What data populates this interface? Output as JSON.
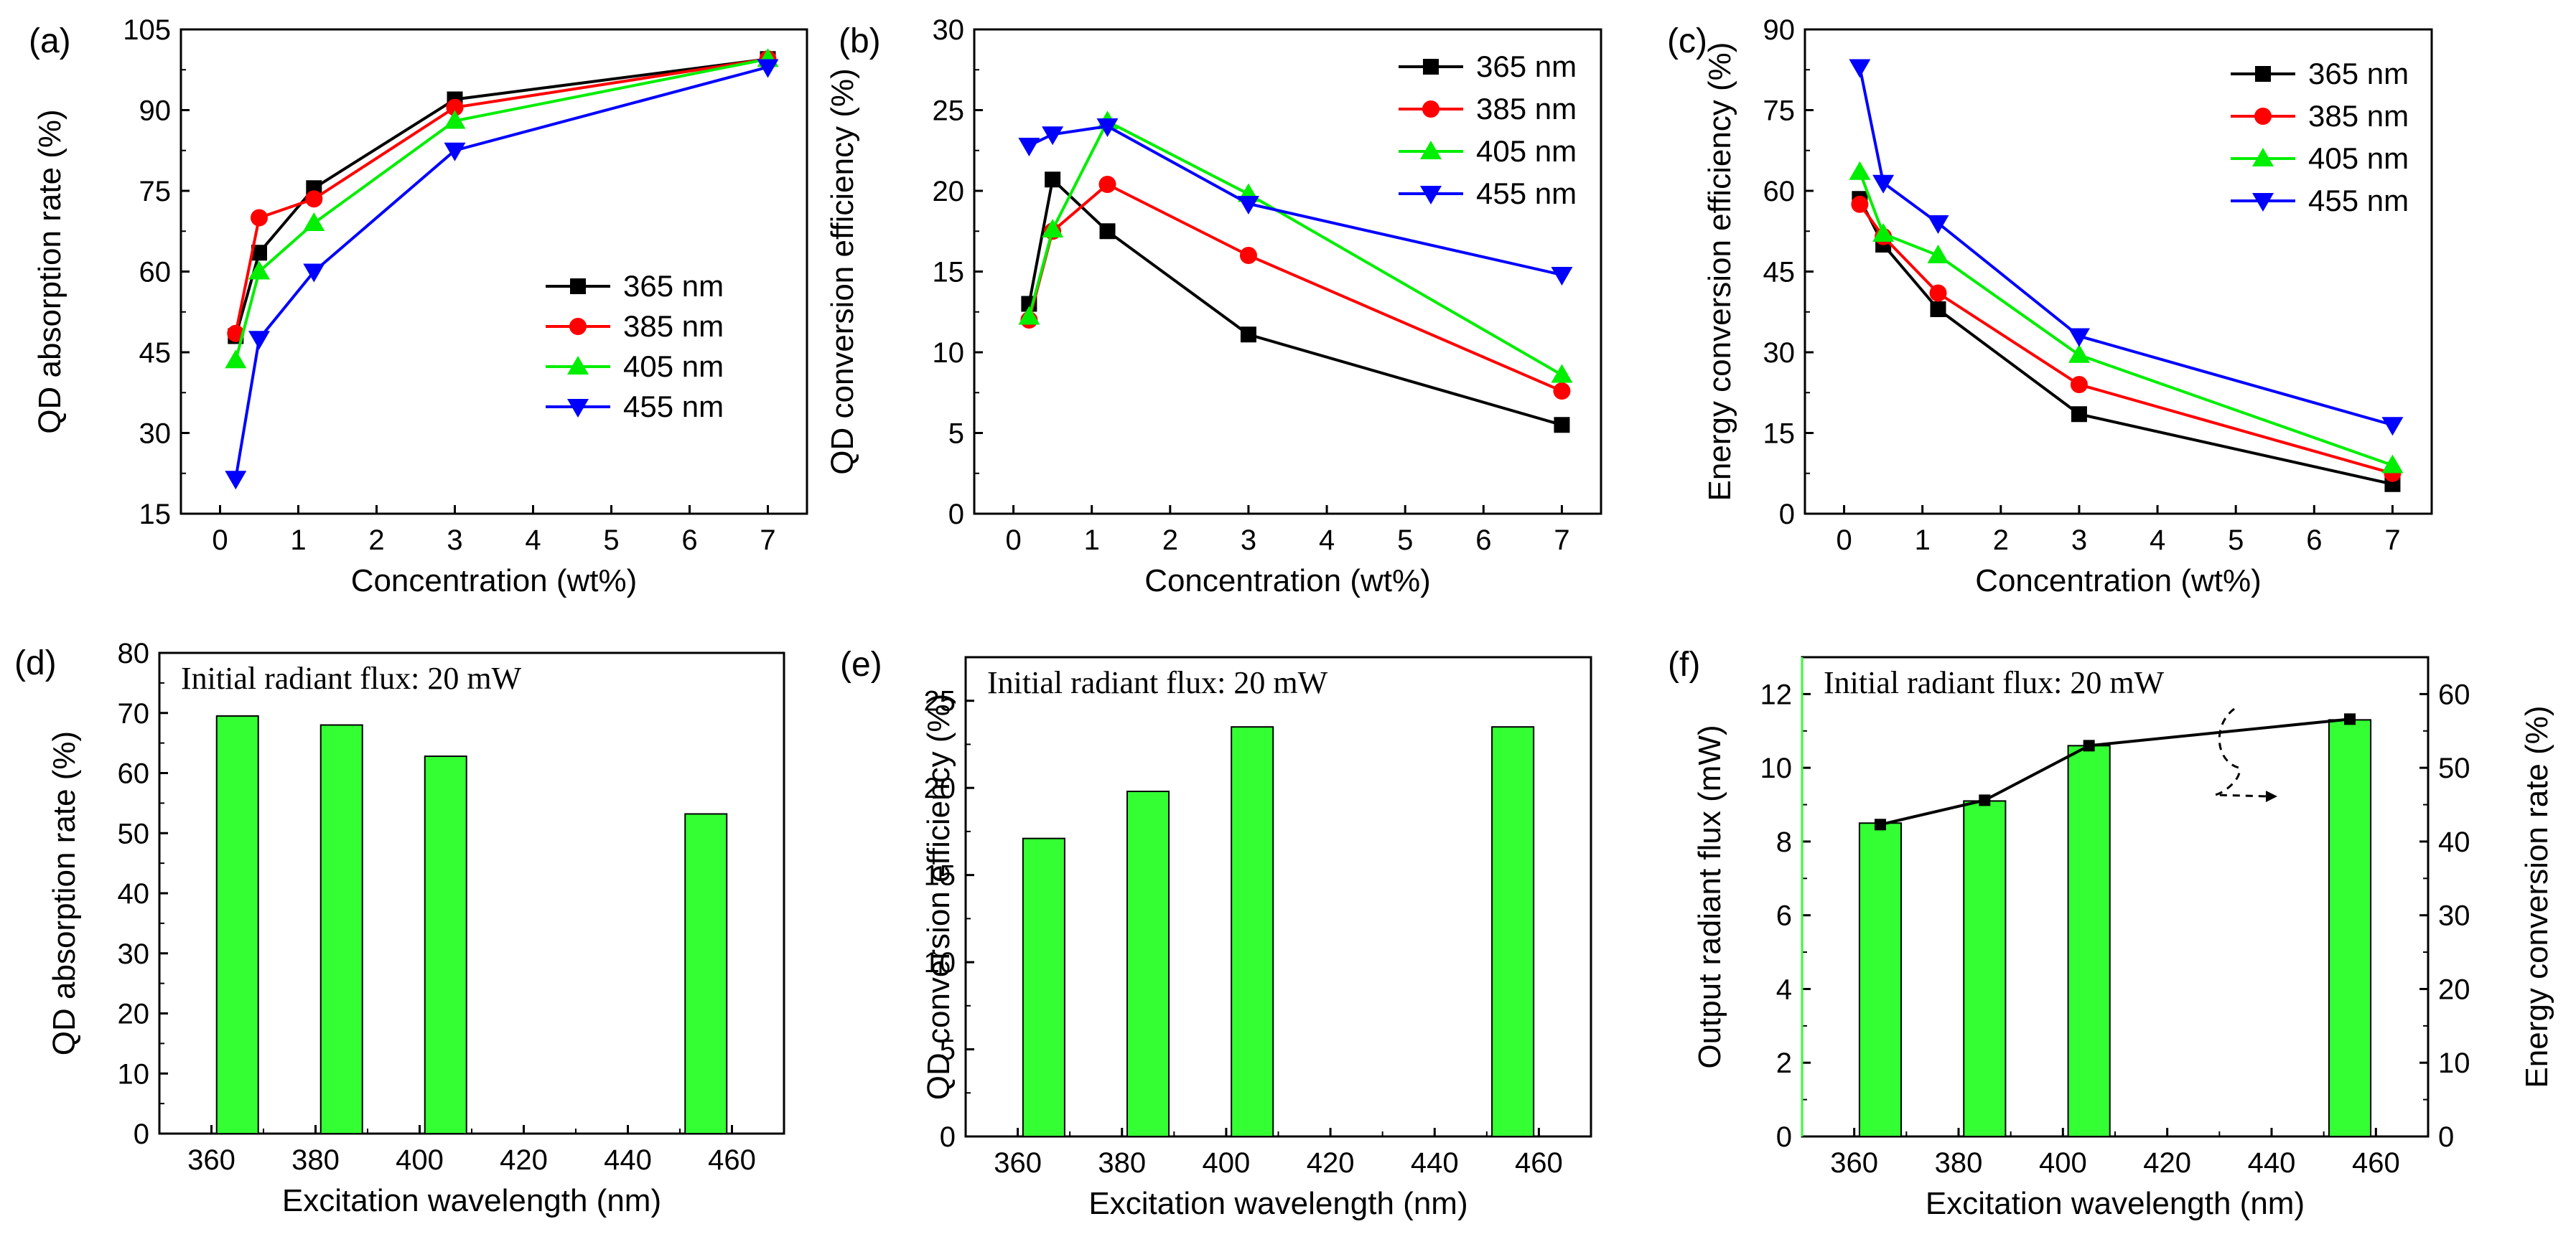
{
  "colors": {
    "s365": "#000000",
    "s385": "#ff0000",
    "s405": "#00ee00",
    "s455": "#0000ff",
    "bar": "#33ff33",
    "axis": "#000000"
  },
  "chart_data": [
    {
      "id": "a",
      "panel_label": "(a)",
      "type": "line",
      "xlabel": "Concentration (wt%)",
      "ylabel": "QD absorption rate (%)",
      "xlim": [
        -0.5,
        7.5
      ],
      "ylim": [
        15,
        105
      ],
      "xticks": [
        0,
        1,
        2,
        3,
        4,
        5,
        6,
        7
      ],
      "yticks": [
        15,
        30,
        45,
        60,
        75,
        90,
        105
      ],
      "legend": "bottom-right",
      "x": [
        0.2,
        0.5,
        1.2,
        3,
        7
      ],
      "series": [
        {
          "name": "365 nm",
          "marker": "square",
          "values": [
            48,
            63.5,
            75.5,
            92,
            99.5
          ]
        },
        {
          "name": "385 nm",
          "marker": "circle",
          "values": [
            48.5,
            70,
            73.5,
            90.5,
            99.5
          ]
        },
        {
          "name": "405 nm",
          "marker": "triangle-up",
          "values": [
            43.5,
            60,
            69,
            88,
            99.5
          ]
        },
        {
          "name": "455 nm",
          "marker": "triangle-down",
          "values": [
            21.5,
            47.5,
            60,
            82.5,
            98
          ]
        }
      ]
    },
    {
      "id": "b",
      "panel_label": "(b)",
      "type": "line",
      "xlabel": "Concentration (wt%)",
      "ylabel": "QD conversion efficiency (%)",
      "xlim": [
        -0.5,
        7.5
      ],
      "ylim": [
        0,
        30
      ],
      "xticks": [
        0,
        1,
        2,
        3,
        4,
        5,
        6,
        7
      ],
      "yticks": [
        0,
        5,
        10,
        15,
        20,
        25,
        30
      ],
      "legend": "top-right",
      "x": [
        0.2,
        0.5,
        1.2,
        3,
        7
      ],
      "series": [
        {
          "name": "365 nm",
          "marker": "square",
          "values": [
            13,
            20.7,
            17.5,
            11.1,
            5.5
          ]
        },
        {
          "name": "385 nm",
          "marker": "circle",
          "values": [
            12,
            17.5,
            20.4,
            16,
            7.6
          ]
        },
        {
          "name": "405 nm",
          "marker": "triangle-up",
          "values": [
            12.2,
            17.6,
            24.3,
            19.8,
            8.6
          ]
        },
        {
          "name": "455 nm",
          "marker": "triangle-down",
          "values": [
            22.8,
            23.5,
            24,
            19.2,
            14.8
          ]
        }
      ]
    },
    {
      "id": "c",
      "panel_label": "(c)",
      "type": "line",
      "xlabel": "Concentration (wt%)",
      "ylabel": "Energy conversion efficiency (%)",
      "xlim": [
        -0.5,
        7.5
      ],
      "ylim": [
        0,
        90
      ],
      "xticks": [
        0,
        1,
        2,
        3,
        4,
        5,
        6,
        7
      ],
      "yticks": [
        0,
        15,
        30,
        45,
        60,
        75,
        90
      ],
      "legend": "top-right",
      "x": [
        0.2,
        0.5,
        1.2,
        3,
        7
      ],
      "series": [
        {
          "name": "365 nm",
          "marker": "square",
          "values": [
            58.5,
            50,
            38,
            18.5,
            5.5
          ]
        },
        {
          "name": "385 nm",
          "marker": "circle",
          "values": [
            57.5,
            51.5,
            41,
            24,
            7.5
          ]
        },
        {
          "name": "405 nm",
          "marker": "triangle-up",
          "values": [
            63.5,
            52,
            48,
            29.5,
            9
          ]
        },
        {
          "name": "455 nm",
          "marker": "triangle-down",
          "values": [
            83,
            61.5,
            54,
            33,
            16.5
          ]
        }
      ]
    },
    {
      "id": "d",
      "panel_label": "(d)",
      "type": "bar",
      "annotation": "Initial radiant flux: 20 mW",
      "xlabel": "Excitation wavelength (nm)",
      "ylabel": "QD absorption rate (%)",
      "xlim": [
        350,
        470
      ],
      "ylim": [
        0,
        80
      ],
      "xticks": [
        360,
        380,
        400,
        420,
        440,
        460
      ],
      "yticks": [
        0,
        10,
        20,
        30,
        40,
        50,
        60,
        70,
        80
      ],
      "categories": [
        365,
        385,
        405,
        455
      ],
      "values": [
        69.5,
        68,
        62.8,
        53.2
      ]
    },
    {
      "id": "e",
      "panel_label": "(e)",
      "type": "bar",
      "annotation": "Initial radiant flux: 20 mW",
      "xlabel": "Excitation wavelength (nm)",
      "ylabel": "QD conversion efficiency (%)",
      "xlim": [
        350,
        470
      ],
      "ylim": [
        0,
        27.5
      ],
      "xticks": [
        360,
        380,
        400,
        420,
        440,
        460
      ],
      "yticks": [
        0,
        5,
        10,
        15,
        20,
        25
      ],
      "categories": [
        365,
        385,
        405,
        455
      ],
      "values": [
        17.1,
        19.8,
        23.5,
        23.5
      ]
    },
    {
      "id": "f",
      "panel_label": "(f)",
      "type": "bar",
      "annotation": "Initial radiant flux: 20 mW",
      "xlabel": "Excitation wavelength (nm)",
      "ylabel": "Output radiant flux (mW)",
      "y2label": "Energy conversion rate (%)",
      "xlim": [
        350,
        470
      ],
      "ylim": [
        0,
        13
      ],
      "y2lim": [
        0,
        65
      ],
      "xticks": [
        360,
        380,
        400,
        420,
        440,
        460
      ],
      "yticks": [
        0,
        2,
        4,
        6,
        8,
        10,
        12
      ],
      "y2ticks": [
        0,
        10,
        20,
        30,
        40,
        50,
        60
      ],
      "categories": [
        365,
        385,
        405,
        455
      ],
      "values": [
        8.5,
        9.1,
        10.6,
        11.3
      ],
      "line_values": [
        42.3,
        45.6,
        53,
        56.6
      ]
    }
  ]
}
